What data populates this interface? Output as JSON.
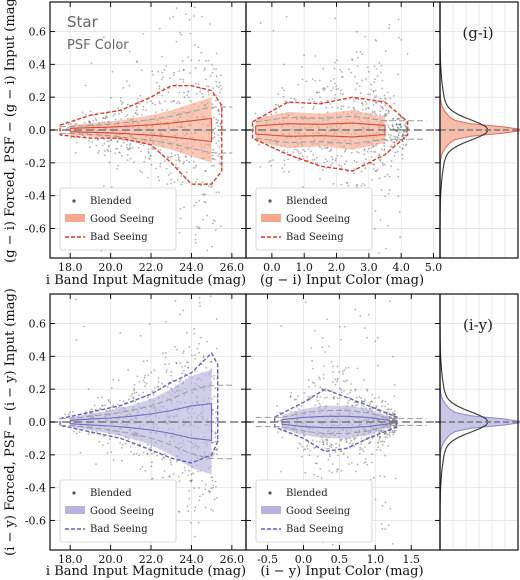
{
  "colors": {
    "good_gi": "#f4a98e",
    "bad_gi": "#d63b2b",
    "good_iy": "#b8b4de",
    "bad_iy": "#6a5fb8",
    "blended": "#555555",
    "median": "#777777"
  },
  "annotations": {
    "object": "Star",
    "quantity": "PSF Color"
  },
  "chart_data": [
    {
      "type": "scatter",
      "panel": "gi-magnitude",
      "xlabel": "i Band Input Magnitude (mag)",
      "ylabel": "(g − i) Forced, PSF − (g − i) Input (mag)",
      "xlim": [
        17.0,
        26.7
      ],
      "ylim": [
        -0.78,
        0.78
      ],
      "xticks": [
        "18.0",
        "20.0",
        "22.0",
        "24.0",
        "26.0"
      ],
      "yticks": [
        "0.6",
        "0.4",
        "0.2",
        "0.0",
        "-0.2",
        "-0.4",
        "-0.6"
      ],
      "legend": [
        "Blended",
        "Good Seeing",
        "Bad Seeing"
      ],
      "legend_position": "lower-left",
      "grid": true,
      "good_envelope": {
        "x": [
          18.0,
          19.0,
          20.0,
          21.0,
          22.0,
          23.0,
          24.0,
          25.0
        ],
        "half_width": [
          0.03,
          0.04,
          0.05,
          0.07,
          0.09,
          0.12,
          0.16,
          0.2
        ]
      },
      "bad_envelope": {
        "x": [
          17.5,
          19.0,
          20.5,
          22.0,
          23.0,
          24.0,
          25.0,
          25.5
        ],
        "upper": [
          0.03,
          0.09,
          0.12,
          0.2,
          0.27,
          0.27,
          0.24,
          0.15
        ],
        "lower": [
          -0.03,
          -0.05,
          -0.05,
          -0.09,
          -0.2,
          -0.33,
          -0.33,
          -0.25
        ]
      }
    },
    {
      "type": "scatter",
      "panel": "gi-color",
      "xlabel": "(g − i) Input Color (mag)",
      "xlim": [
        -0.8,
        5.2
      ],
      "ylim": [
        -0.78,
        0.78
      ],
      "xticks": [
        "0.0",
        "1.0",
        "2.0",
        "3.0",
        "4.0",
        "5.0"
      ],
      "legend": [
        "Blended",
        "Good Seeing",
        "Bad Seeing"
      ],
      "legend_position": "lower-left",
      "grid": true,
      "good_envelope": {
        "x": [
          -0.5,
          0.5,
          1.5,
          2.5,
          3.5
        ],
        "half_width": [
          0.07,
          0.11,
          0.1,
          0.12,
          0.08
        ]
      },
      "bad_envelope": {
        "x": [
          -0.6,
          0.5,
          1.5,
          2.5,
          3.5,
          4.2
        ],
        "upper": [
          0.05,
          0.17,
          0.16,
          0.2,
          0.17,
          0.05
        ],
        "lower": [
          -0.05,
          -0.15,
          -0.22,
          -0.25,
          -0.15,
          -0.03
        ]
      }
    },
    {
      "type": "area",
      "panel": "gi-histogram",
      "label": "(g-i)",
      "ylim": [
        -0.78,
        0.78
      ],
      "peak_at": 0.0
    },
    {
      "type": "scatter",
      "panel": "iy-magnitude",
      "xlabel": "i Band Input Magnitude (mag)",
      "ylabel": "(i − y) Forced, PSF − (i − y) Input (mag)",
      "xlim": [
        17.0,
        26.7
      ],
      "ylim": [
        -0.78,
        0.78
      ],
      "xticks": [
        "18.0",
        "20.0",
        "22.0",
        "24.0",
        "26.0"
      ],
      "yticks": [
        "0.6",
        "0.4",
        "0.2",
        "0.0",
        "-0.2",
        "-0.4",
        "-0.6"
      ],
      "legend": [
        "Blended",
        "Good Seeing",
        "Bad Seeing"
      ],
      "legend_position": "lower-left",
      "grid": true,
      "good_envelope": {
        "x": [
          18.0,
          19.0,
          20.0,
          21.0,
          22.0,
          23.0,
          24.0,
          25.0
        ],
        "half_width": [
          0.03,
          0.05,
          0.07,
          0.1,
          0.14,
          0.2,
          0.28,
          0.32
        ]
      },
      "bad_envelope": {
        "x": [
          17.5,
          19.0,
          20.5,
          22.0,
          23.0,
          24.0,
          25.0,
          25.3
        ],
        "upper": [
          0.02,
          0.06,
          0.1,
          0.17,
          0.24,
          0.3,
          0.42,
          0.35
        ],
        "lower": [
          -0.02,
          -0.06,
          -0.1,
          -0.17,
          -0.22,
          -0.25,
          -0.2,
          -0.12
        ]
      }
    },
    {
      "type": "scatter",
      "panel": "iy-color",
      "xlabel": "(i − y) Input Color (mag)",
      "xlim": [
        -0.8,
        1.9
      ],
      "ylim": [
        -0.78,
        0.78
      ],
      "xticks": [
        "-0.5",
        "0.0",
        "0.5",
        "1.0",
        "1.5"
      ],
      "legend": [
        "Blended",
        "Good Seeing",
        "Bad Seeing"
      ],
      "legend_position": "lower-left",
      "grid": true,
      "good_envelope": {
        "x": [
          -0.3,
          0.0,
          0.3,
          0.6,
          0.9,
          1.2
        ],
        "half_width": [
          0.04,
          0.08,
          0.1,
          0.1,
          0.08,
          0.03
        ]
      },
      "bad_envelope": {
        "x": [
          -0.4,
          0.0,
          0.3,
          0.6,
          0.9,
          1.3
        ],
        "upper": [
          0.03,
          0.12,
          0.2,
          0.15,
          0.1,
          0.03
        ],
        "lower": [
          -0.03,
          -0.1,
          -0.18,
          -0.16,
          -0.1,
          -0.03
        ]
      }
    },
    {
      "type": "area",
      "panel": "iy-histogram",
      "label": "(i-y)",
      "ylim": [
        -0.78,
        0.78
      ],
      "peak_at": 0.0
    }
  ]
}
